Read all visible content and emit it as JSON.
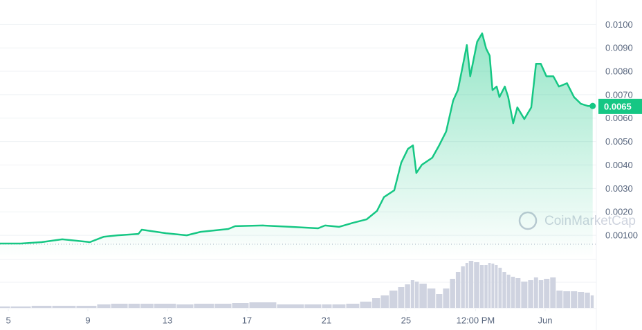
{
  "chart_data": {
    "type": "area",
    "watermark": "CoinMarketCap",
    "x": [
      4.58,
      5.63,
      6.67,
      7.71,
      9.1,
      9.8,
      10.5,
      11.54,
      11.71,
      12.93,
      13.97,
      14.67,
      16.06,
      16.41,
      17.8,
      19.19,
      20.58,
      20.93,
      21.63,
      22.32,
      23.02,
      23.54,
      23.89,
      24.41,
      24.76,
      25.1,
      25.35,
      25.52,
      25.8,
      26.32,
      26.67,
      27.02,
      27.37,
      27.61,
      27.89,
      28.06,
      28.23,
      28.58,
      28.83,
      29.03,
      29.21,
      29.35,
      29.56,
      29.7,
      29.97,
      30.14,
      30.39,
      30.6,
      30.95,
      31.3,
      31.54,
      31.78,
      32.06,
      32.41,
      32.69,
      33.1,
      33.45,
      33.8,
      34.15,
      34.39
    ],
    "series": [
      {
        "color": "#16c784",
        "values": [
          0.00065,
          0.00065,
          0.00071,
          0.00083,
          0.00071,
          0.00094,
          0.001,
          0.00106,
          0.00124,
          0.00109,
          0.001,
          0.00115,
          0.00127,
          0.00139,
          0.00142,
          0.00136,
          0.0013,
          0.00142,
          0.00136,
          0.00153,
          0.00168,
          0.00204,
          0.00263,
          0.00292,
          0.0041,
          0.00469,
          0.00484,
          0.00366,
          0.00401,
          0.00431,
          0.00484,
          0.00543,
          0.00675,
          0.0072,
          0.00838,
          0.00912,
          0.00779,
          0.00926,
          0.00962,
          0.00897,
          0.00867,
          0.0072,
          0.00735,
          0.0069,
          0.00735,
          0.0069,
          0.00578,
          0.00646,
          0.00596,
          0.00646,
          0.00832,
          0.00832,
          0.00779,
          0.00779,
          0.00735,
          0.00749,
          0.0069,
          0.00661,
          0.00652,
          0.00652
        ]
      },
      {
        "color": "#cfd3e0",
        "values": [
          2,
          2,
          3,
          3,
          3,
          5,
          6,
          6,
          6,
          6,
          5,
          6,
          6,
          7,
          8,
          5,
          5,
          5,
          5,
          6,
          9,
          14,
          18,
          25,
          30,
          34,
          40,
          38,
          35,
          28,
          20,
          28,
          42,
          52,
          60,
          65,
          68,
          66,
          62,
          62,
          65,
          64,
          62,
          58,
          52,
          48,
          45,
          43,
          38,
          40,
          44,
          40,
          42,
          44,
          25,
          24,
          24,
          23,
          22,
          18
        ]
      }
    ],
    "volume_lim": [
      0,
      70
    ],
    "current_price": 0.0065,
    "reference_line": 0.00062,
    "xlim": [
      4.58,
      34.4
    ],
    "xticks": [
      5,
      9,
      13,
      17,
      21,
      25,
      {
        "value": 28.5,
        "label": "12:00 PM"
      },
      {
        "value": 32,
        "label": "Jun"
      }
    ],
    "ylim": [
      0,
      0.0106
    ],
    "yticks": [
      {
        "value": 0.001,
        "label": "0.00100"
      },
      {
        "value": 0.002,
        "label": "0.0020"
      },
      {
        "value": 0.003,
        "label": "0.0030"
      },
      {
        "value": 0.004,
        "label": "0.0040"
      },
      {
        "value": 0.005,
        "label": "0.0050"
      },
      {
        "value": 0.006,
        "label": "0.0060"
      },
      {
        "value": 0.007,
        "label": "0.0070"
      },
      {
        "value": 0.008,
        "label": "0.0080"
      },
      {
        "value": 0.009,
        "label": "0.0090"
      },
      {
        "value": 0.01,
        "label": "0.0100"
      }
    ],
    "grid": true
  }
}
